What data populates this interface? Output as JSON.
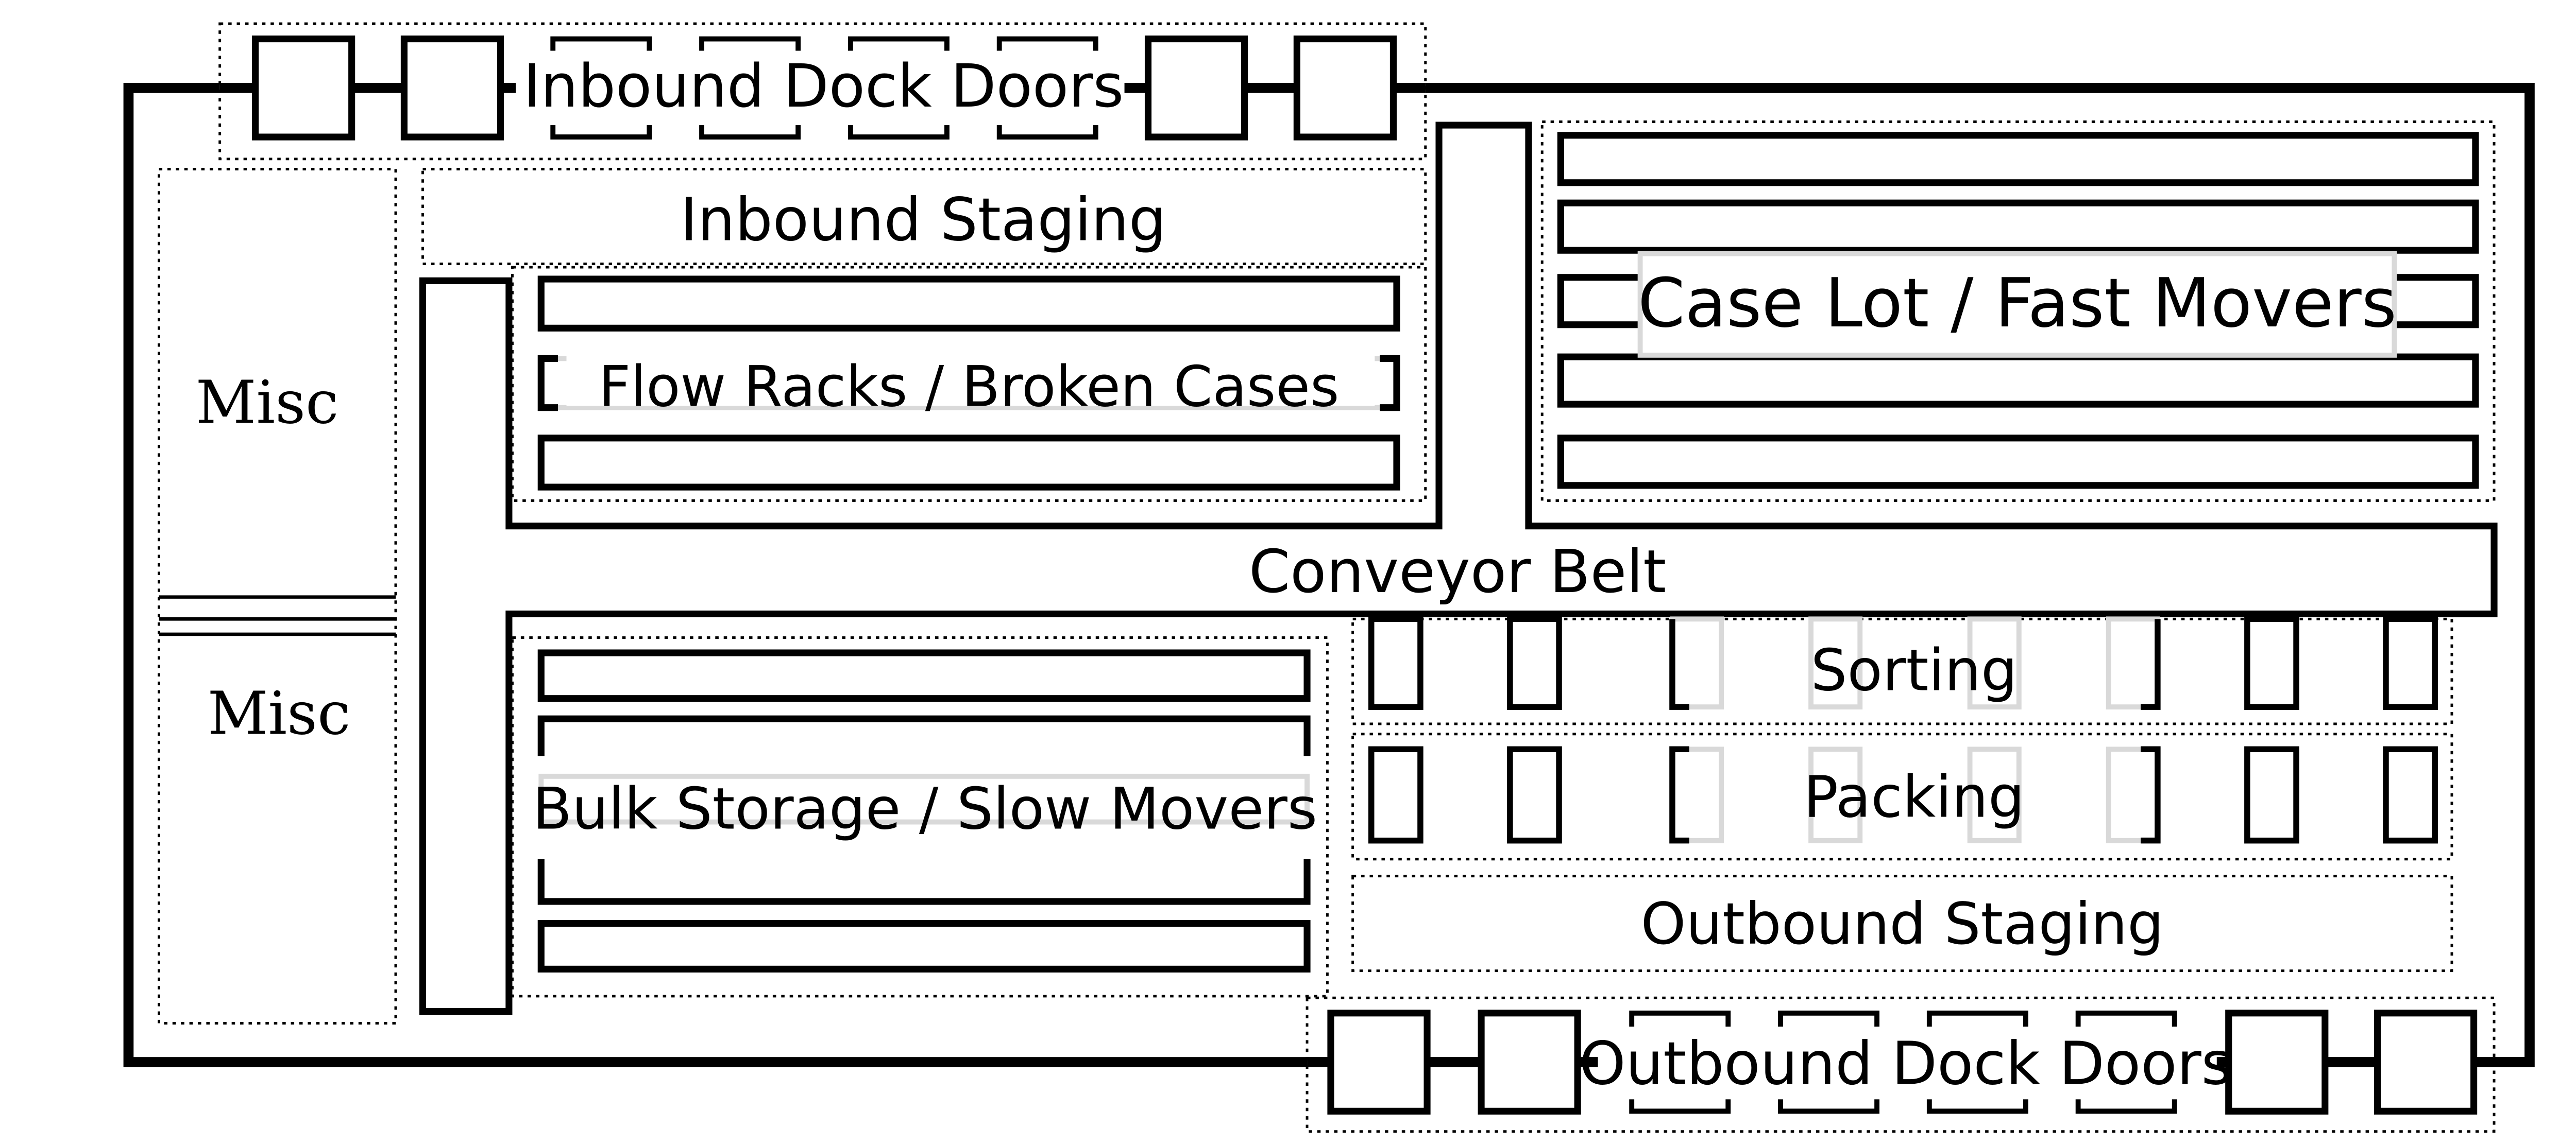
{
  "diagram": {
    "labels": {
      "inbound_dock_doors": "Inbound Dock Doors",
      "inbound_staging": "Inbound Staging",
      "flow_racks": "Flow Racks / Broken Cases",
      "case_lot": "Case Lot / Fast Movers",
      "conveyor_belt": "Conveyor Belt",
      "sorting": "Sorting",
      "packing": "Packing",
      "bulk_storage": "Bulk Storage / Slow Movers",
      "outbound_staging": "Outbound Staging",
      "outbound_dock_doors": "Outbound Dock Doors",
      "misc_top": "Misc",
      "misc_bottom": "Misc"
    },
    "colors": {
      "line": "#000000",
      "faded": "#d9d9d9",
      "background": "#ffffff"
    }
  }
}
